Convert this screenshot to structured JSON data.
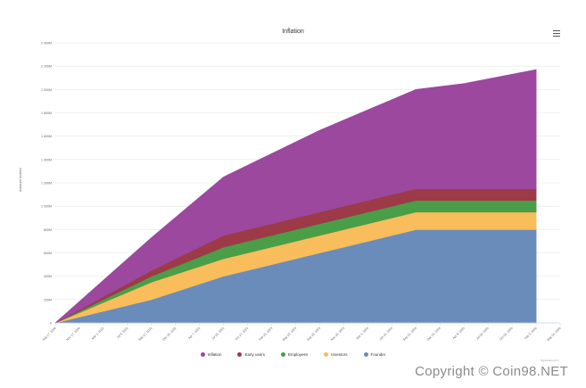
{
  "title": "Inflation",
  "watermark": "Copyright © Coin98.NET",
  "credits": "highcharts.com",
  "chart_data": {
    "type": "area",
    "stacked": true,
    "title": "Inflation",
    "ylabel": "Amount locked",
    "xlabel": "",
    "ylim": [
      0,
      2400
    ],
    "y_ticks": [
      0,
      200,
      400,
      600,
      800,
      1000,
      1200,
      1400,
      1600,
      1800,
      2000,
      2200,
      2400
    ],
    "y_tick_labels": [
      "0",
      "200M",
      "400M",
      "600M",
      "800M",
      "1 000M",
      "1 200M",
      "1 400M",
      "1 600M",
      "1 800M",
      "2 000M",
      "2 200M",
      "2 400M"
    ],
    "x_tick_labels": [
      "Aug 17, 2020",
      "Nov 17, 2020",
      "Mar 1, 2021",
      "Jul 9, 2021",
      "Sep 17, 2021",
      "Dec 26, 2021",
      "Apr 7, 2022",
      "Jul 18, 2022",
      "Oct 27, 2022",
      "Feb 25, 2023",
      "May 19, 2023",
      "Aug 28, 2023",
      "Nov 24, 2023",
      "Mar 1, 2024",
      "Jun 11, 2024",
      "Sep 21, 2024",
      "Dec 28, 2024",
      "Apr 9, 2025",
      "Jul 18, 2025",
      "Oct 26, 2025",
      "Feb 3, 2026",
      "May 14, 2026"
    ],
    "x": [
      0,
      4,
      7,
      11,
      15,
      17,
      20
    ],
    "series": [
      {
        "name": "Founder",
        "color": "#6a8cba",
        "values": [
          0,
          200,
          400,
          600,
          800,
          800,
          800
        ]
      },
      {
        "name": "Investors",
        "color": "#f9bd5c",
        "values": [
          0,
          150,
          150,
          150,
          150,
          150,
          150
        ]
      },
      {
        "name": "Employees",
        "color": "#4a9e47",
        "values": [
          0,
          50,
          100,
          100,
          100,
          100,
          100
        ]
      },
      {
        "name": "Early users",
        "color": "#9c3a47",
        "values": [
          0,
          50,
          100,
          100,
          100,
          100,
          100
        ]
      },
      {
        "name": "Inflation",
        "color": "#9b489e",
        "values": [
          0,
          280,
          500,
          700,
          850,
          900,
          1020
        ]
      }
    ],
    "legend_order": [
      "Inflation",
      "Early users",
      "Employees",
      "Investors",
      "Founder"
    ],
    "legend_position": "bottom",
    "grid": true
  }
}
